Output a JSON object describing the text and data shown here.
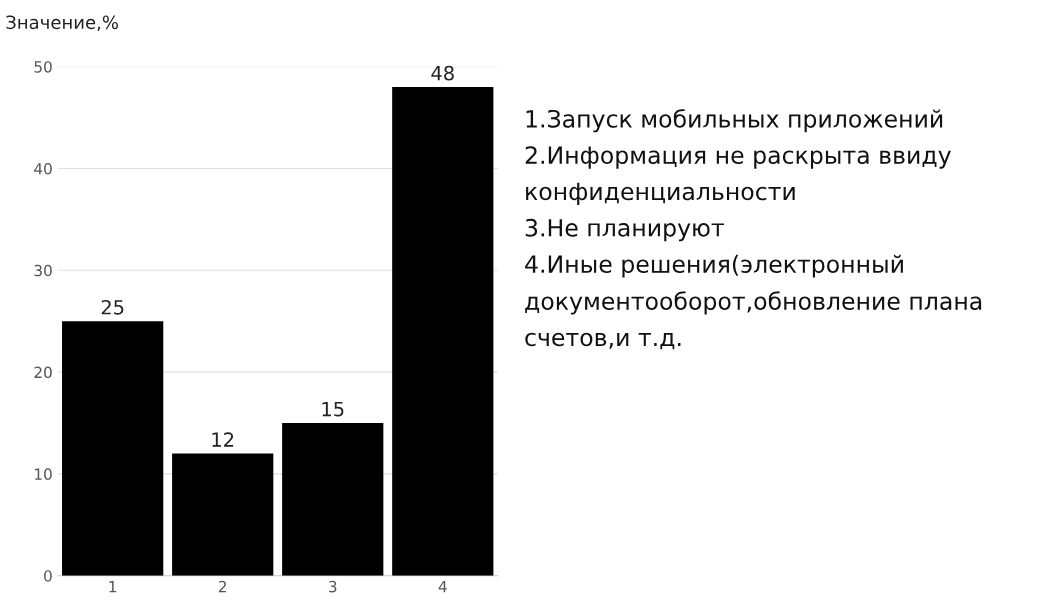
{
  "chart_data": {
    "type": "bar",
    "ylabel": "Значение,%",
    "categories": [
      "1",
      "2",
      "3",
      "4"
    ],
    "values": [
      25,
      12,
      15,
      48
    ],
    "color": "#000000",
    "ylim": [
      0,
      50
    ],
    "yticks": [
      0,
      10,
      20,
      30,
      40,
      50
    ],
    "grid": "y",
    "data_labels": true,
    "legend": false,
    "annotations": [
      "1.Запуск мобильных приложений",
      "2.Информация не раскрыта ввиду конфиденциальности",
      "3.Не планируют",
      "4.Иные решения(электронный документооборот,обновление плана счетов,и т.д."
    ]
  }
}
